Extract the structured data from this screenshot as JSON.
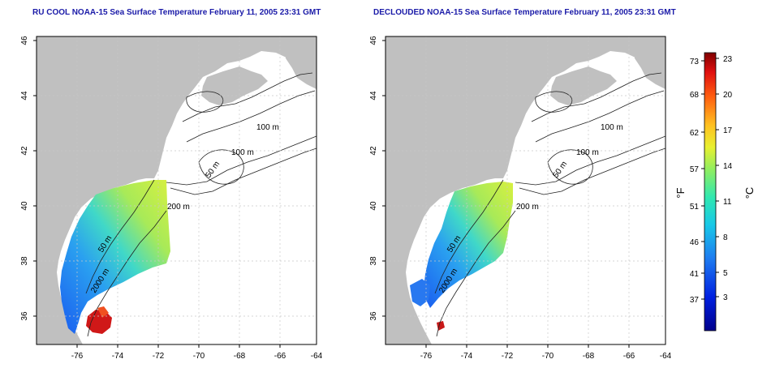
{
  "titles": {
    "left": "RU COOL NOAA-15 Sea Surface Temperature February 11, 2005 23:31 GMT",
    "right": "DECLOUDED NOAA-15 Sea Surface Temperature February 11, 2005 23:31 GMT"
  },
  "axes": {
    "x_ticks": [
      "-76",
      "-74",
      "-72",
      "-70",
      "-68",
      "-66",
      "-64"
    ],
    "y_ticks": [
      "36",
      "38",
      "40",
      "42",
      "44",
      "46"
    ],
    "x_range": [
      -77.2,
      -63.0
    ],
    "y_range": [
      35.0,
      46.0
    ]
  },
  "contour_labels": [
    "100 m",
    "100 m",
    "50 m",
    "200 m",
    "50 m",
    "2000 m"
  ],
  "colorbar": {
    "fahrenheit_label": "°F",
    "celsius_label": "°C",
    "fahrenheit_ticks": [
      "73",
      "68",
      "62",
      "57",
      "51",
      "46",
      "41",
      "37"
    ],
    "celsius_ticks": [
      "23",
      "20",
      "17",
      "14",
      "11",
      "8",
      "5",
      "3"
    ],
    "celsius_range": [
      0,
      23.5
    ]
  },
  "colors": {
    "land": "#c0c0c0",
    "title": "#1a1aa8",
    "grid": "#c8c8c8"
  }
}
